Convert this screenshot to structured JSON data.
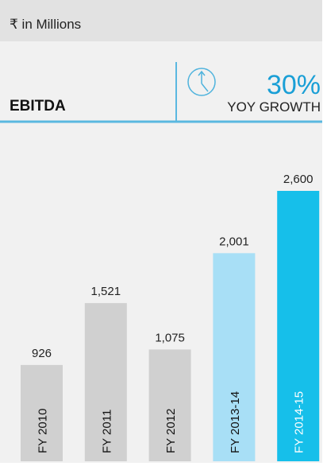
{
  "chart_data": {
    "type": "bar",
    "unit_label": "₹ in Millions",
    "title": "EBITDA",
    "growth": "30%",
    "growth_label": "YOY GROWTH",
    "categories": [
      "FY 2010",
      "FY 2011",
      "FY 2012",
      "FY 2013-14",
      "FY 2014-15"
    ],
    "values": [
      926,
      1521,
      1075,
      2001,
      2600
    ],
    "value_labels": [
      "926",
      "1,521",
      "1,075",
      "2,001",
      "2,600"
    ],
    "colors": [
      "#d0d0d0",
      "#d0d0d0",
      "#d0d0d0",
      "#a8dff6",
      "#16bfea"
    ]
  }
}
